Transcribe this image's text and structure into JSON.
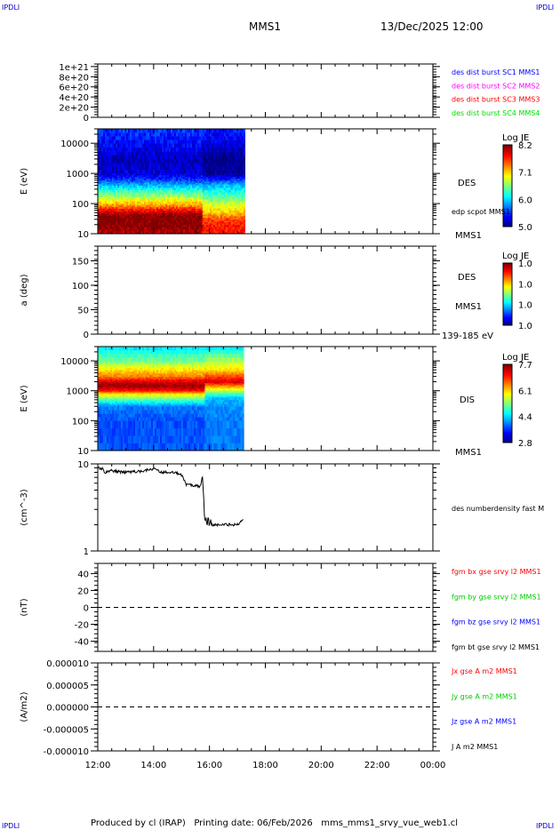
{
  "header": {
    "logo": "IPDLI",
    "title": "MMS1",
    "date": "13/Dec/2025 12:00"
  },
  "footer": {
    "text": "Produced by cl (IRAP)   Printing date: 06/Feb/2026   mms_mms1_srvy_vue_web1.cl",
    "logo": "IPDLI"
  },
  "time_axis": {
    "ticks": [
      "12:00",
      "14:00",
      "16:00",
      "18:00",
      "20:00",
      "22:00",
      "00:00"
    ]
  },
  "chart_data": [
    {
      "type": "line",
      "ylabel": "",
      "yticks": [
        "1e+21",
        "8e+20",
        "6e+20",
        "4e+20",
        "2e+20",
        "0"
      ],
      "ylim": [
        0,
        1.05e+21
      ],
      "zero_line": true,
      "legend": [
        {
          "text": "des dist burst SC1 MMS1",
          "color": "#0000ff"
        },
        {
          "text": "des dist burst SC2 MMS2",
          "color": "#ff00ff"
        },
        {
          "text": "des dist burst SC3 MMS3",
          "color": "#ff0000"
        },
        {
          "text": "des dist burst SC4 MMS4",
          "color": "#00dd00"
        }
      ]
    },
    {
      "type": "heatmap",
      "ylabel": "E (eV)",
      "yticks": [
        "10000",
        "1000",
        "100",
        "10"
      ],
      "ylim": [
        10,
        30000
      ],
      "yscale": "log",
      "colorbar": {
        "title": "Log JE",
        "ticks": [
          "8.2",
          "7.1",
          "6.0",
          "5.0"
        ],
        "range": [
          5.0,
          8.2
        ]
      },
      "labels": [
        "DES",
        "edp scpot MMS1",
        "MMS1"
      ],
      "data_end": "17:13",
      "segments": [
        {
          "from": "12:00",
          "to": "15:45",
          "energy": [
            10,
            20,
            40,
            60,
            100,
            200,
            400,
            600,
            1000,
            3000,
            10000,
            30000
          ],
          "logje": [
            8.0,
            8.2,
            8.2,
            7.8,
            7.2,
            6.6,
            6.0,
            5.6,
            5.3,
            5.2,
            5.4,
            5.6
          ]
        },
        {
          "from": "15:45",
          "to": "17:13",
          "energy": [
            10,
            20,
            30,
            50,
            100,
            200,
            400,
            600,
            1000,
            3000,
            10000,
            30000
          ],
          "logje": [
            7.7,
            7.7,
            7.6,
            7.2,
            6.8,
            6.4,
            6.0,
            5.6,
            5.1,
            5.0,
            5.3,
            5.5
          ]
        }
      ]
    },
    {
      "type": "heatmap",
      "ylabel": "a (deg)",
      "yticks": [
        "150",
        "100",
        "50",
        "0"
      ],
      "ylim": [
        0,
        180
      ],
      "colorbar": {
        "title": "Log JE",
        "ticks": [
          "1.0",
          "1.0",
          "1.0",
          "1.0"
        ]
      },
      "labels": [
        "DES",
        "MMS1",
        "139-185 eV"
      ]
    },
    {
      "type": "heatmap",
      "ylabel": "E (eV)",
      "yticks": [
        "10000",
        "1000",
        "100",
        "10"
      ],
      "ylim": [
        10,
        30000
      ],
      "yscale": "log",
      "colorbar": {
        "title": "Log JE",
        "ticks": [
          "7.7",
          "6.1",
          "4.4",
          "2.8"
        ],
        "range": [
          2.8,
          7.7
        ]
      },
      "labels": [
        "DIS",
        "MMS1"
      ],
      "data_end": "17:13",
      "segments": [
        {
          "from": "12:00",
          "to": "15:50",
          "energy": [
            10,
            100,
            300,
            500,
            800,
            1000,
            1500,
            2000,
            3000,
            5000,
            10000,
            30000
          ],
          "logje": [
            3.8,
            3.8,
            4.0,
            5.0,
            6.0,
            7.0,
            7.6,
            7.3,
            6.5,
            6.0,
            5.2,
            4.5
          ]
        },
        {
          "from": "15:50",
          "to": "17:13",
          "energy": [
            10,
            100,
            300,
            600,
            800,
            1000,
            1500,
            2000,
            3000,
            5000,
            10000,
            30000
          ],
          "logje": [
            4.0,
            4.0,
            4.1,
            4.4,
            5.0,
            5.5,
            6.5,
            7.3,
            6.8,
            6.0,
            5.5,
            4.5
          ]
        }
      ]
    },
    {
      "type": "line",
      "ylabel": "(cm^-3)",
      "yticks": [
        "10",
        "1"
      ],
      "ylim": [
        1,
        10
      ],
      "yscale": "log",
      "legend": [
        {
          "text": "des numberdensity fast M",
          "color": "#000000"
        }
      ],
      "points": [
        [
          "12:00",
          9.0
        ],
        [
          "12:10",
          8.8
        ],
        [
          "12:15",
          8.0
        ],
        [
          "12:30",
          8.3
        ],
        [
          "13:00",
          8.0
        ],
        [
          "13:30",
          8.2
        ],
        [
          "14:00",
          8.8
        ],
        [
          "14:15",
          8.0
        ],
        [
          "14:45",
          8.0
        ],
        [
          "15:00",
          7.5
        ],
        [
          "15:10",
          5.8
        ],
        [
          "15:30",
          5.6
        ],
        [
          "15:40",
          5.5
        ],
        [
          "15:45",
          7.2
        ],
        [
          "15:50",
          2.4
        ],
        [
          "16:00",
          2.0
        ],
        [
          "16:10",
          2.0
        ],
        [
          "16:30",
          2.0
        ],
        [
          "17:00",
          2.0
        ],
        [
          "17:13",
          2.3
        ]
      ]
    },
    {
      "type": "line",
      "ylabel": "(nT)",
      "yticks": [
        "40",
        "20",
        "0",
        "-20",
        "-40"
      ],
      "ylim": [
        -52,
        52
      ],
      "zero_line": true,
      "legend": [
        {
          "text": "fgm bx gse srvy l2 MMS1",
          "color": "#ff0000"
        },
        {
          "text": "fgm by gse srvy l2 MMS1",
          "color": "#00cc00"
        },
        {
          "text": "fgm bz gse srvy l2 MMS1",
          "color": "#0000ff"
        },
        {
          "text": "fgm bt gse srvy l2 MMS1",
          "color": "#000000"
        }
      ]
    },
    {
      "type": "line",
      "ylabel": "(A/m2)",
      "yticks": [
        "0.000010",
        "0.000005",
        "0.000000",
        "-0.000005",
        "-0.000010"
      ],
      "ylim": [
        -1e-05,
        1e-05
      ],
      "zero_line": true,
      "legend": [
        {
          "text": "Jx gse A m2 MMS1",
          "color": "#ff0000"
        },
        {
          "text": "Jy gse A m2 MMS1",
          "color": "#00cc00"
        },
        {
          "text": "Jz gse A m2 MMS1",
          "color": "#0000ff"
        },
        {
          "text": "J A m2 MMS1",
          "color": "#000000"
        }
      ]
    }
  ]
}
